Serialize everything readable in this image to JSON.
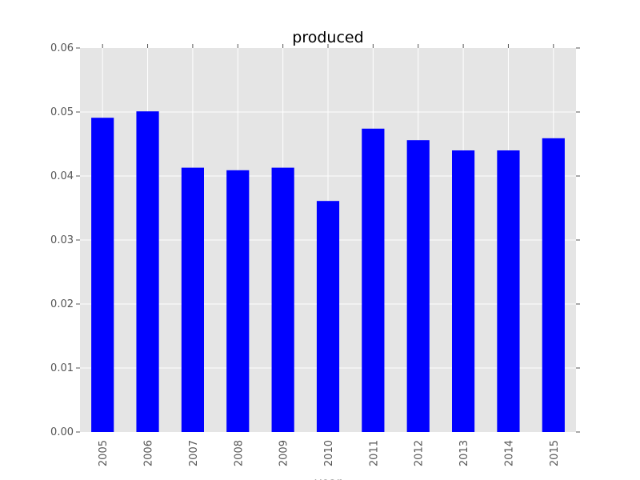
{
  "chart_data": {
    "type": "bar",
    "title": "produced",
    "xlabel": "year",
    "ylabel": "",
    "categories": [
      "2005",
      "2006",
      "2007",
      "2008",
      "2009",
      "2010",
      "2011",
      "2012",
      "2013",
      "2014",
      "2015"
    ],
    "values": [
      0.0491,
      0.0501,
      0.0413,
      0.0409,
      0.0413,
      0.0361,
      0.0474,
      0.0456,
      0.044,
      0.044,
      0.0459
    ],
    "ylim": [
      0,
      0.06
    ],
    "yticks": [
      "0.00",
      "0.01",
      "0.02",
      "0.03",
      "0.04",
      "0.05",
      "0.06"
    ],
    "grid": true,
    "legend": "none",
    "colors": {
      "bar": "#0000ff",
      "plot_background": "#e5e5e5",
      "grid": "#ffffff",
      "tick_text": "#555555",
      "title_text": "#000000"
    }
  }
}
